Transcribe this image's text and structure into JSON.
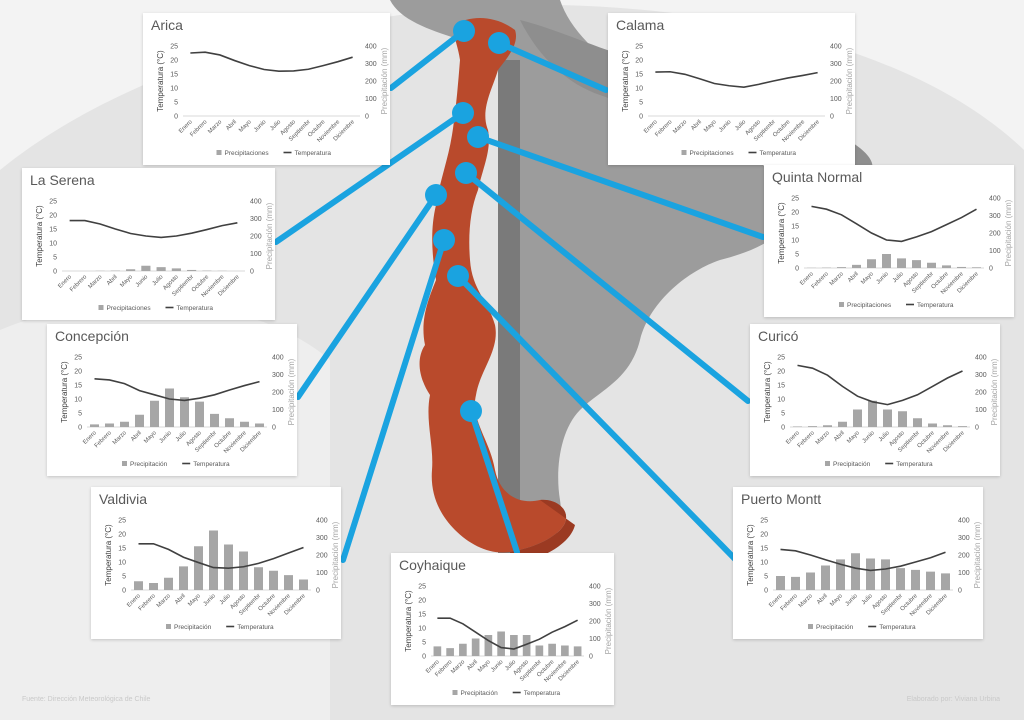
{
  "footer": {
    "source": "Fuente: Dirección Meteorológica de Chile",
    "credit": "Elaborado por: Viviana Urbina"
  },
  "colors": {
    "background": "#f3f3f3",
    "land_grey": "#9a9a9a",
    "chile_red": "#b94a2c",
    "connector_blue": "#1aa3e0",
    "bars": "#a6a6a6",
    "line": "#404040"
  },
  "chart_data": [
    {
      "type": "bar",
      "title": "Arica",
      "categories": [
        "Enero",
        "Febrero",
        "Marzo",
        "Abril",
        "Mayo",
        "Junio",
        "Julio",
        "Agosto",
        "Septiembr",
        "Octubre",
        "Noviembre",
        "Diciembre"
      ],
      "series": [
        {
          "name": "Precipitaciones",
          "kind": "bar",
          "axis": "right",
          "values": [
            0,
            0,
            0,
            0,
            0,
            0,
            0,
            0,
            0,
            0,
            0,
            0
          ]
        },
        {
          "name": "Temperatura",
          "kind": "line",
          "axis": "left",
          "values": [
            22.5,
            22.8,
            21.8,
            19.8,
            18,
            16.6,
            16,
            16.1,
            16.7,
            18,
            19.4,
            21
          ]
        }
      ],
      "ylabel": "Temperatura (°C)",
      "y2label": "Precipitación (mm)",
      "ylim": [
        0,
        25
      ],
      "y2lim": [
        0,
        400
      ],
      "yticks": [
        "0",
        "5",
        "10",
        "15",
        "20",
        "25"
      ],
      "y2ticks": [
        "0",
        "100",
        "200",
        "300",
        "400"
      ],
      "legend": "bottom"
    },
    {
      "type": "bar",
      "title": "Calama",
      "categories": [
        "Enero",
        "Febrero",
        "Marzo",
        "Abril",
        "Mayo",
        "Junio",
        "Julio",
        "Agosto",
        "Septiembr",
        "Octubre",
        "Noviembre",
        "Diciembre"
      ],
      "series": [
        {
          "name": "Precipitaciones",
          "kind": "bar",
          "axis": "right",
          "values": [
            0,
            0,
            0,
            0,
            0,
            0,
            0,
            0,
            0,
            0,
            0,
            0
          ]
        },
        {
          "name": "Temperatura",
          "kind": "line",
          "axis": "left",
          "values": [
            15.7,
            15.8,
            14.9,
            13.3,
            11.6,
            10.8,
            10.3,
            11.3,
            12.5,
            13.6,
            14.5,
            15.5
          ]
        }
      ],
      "ylabel": "Temperatura (°C)",
      "y2label": "Precipitación (mm)",
      "ylim": [
        0,
        25
      ],
      "y2lim": [
        0,
        400
      ],
      "yticks": [
        "0",
        "5",
        "10",
        "15",
        "20",
        "25"
      ],
      "y2ticks": [
        "0",
        "100",
        "200",
        "300",
        "400"
      ],
      "legend": "bottom"
    },
    {
      "type": "bar",
      "title": "La Serena",
      "categories": [
        "Enero",
        "Febrero",
        "Marzo",
        "Abril",
        "Mayo",
        "Junio",
        "Julio",
        "Agosto",
        "Septiembr",
        "Octubre",
        "Noviembre",
        "Diciembre"
      ],
      "series": [
        {
          "name": "Precipitaciones",
          "kind": "bar",
          "axis": "right",
          "values": [
            0,
            0,
            1,
            2,
            10,
            30,
            22,
            15,
            6,
            2,
            1,
            0
          ]
        },
        {
          "name": "Temperatura",
          "kind": "line",
          "axis": "left",
          "values": [
            18,
            18,
            16.8,
            15,
            13.4,
            12.5,
            12,
            12.5,
            13.5,
            14.8,
            16.2,
            17.2
          ]
        }
      ],
      "ylabel": "Temperatura (°C)",
      "y2label": "Precipitación (mm)",
      "ylim": [
        0,
        25
      ],
      "y2lim": [
        0,
        400
      ],
      "yticks": [
        "0",
        "5",
        "10",
        "15",
        "20",
        "25"
      ],
      "y2ticks": [
        "0",
        "100",
        "200",
        "300",
        "400"
      ],
      "legend": "bottom"
    },
    {
      "type": "bar",
      "title": "Quinta Normal",
      "categories": [
        "Enero",
        "Febrero",
        "Marzo",
        "Abril",
        "Mayo",
        "Junio",
        "Julio",
        "Agosto",
        "Septiembr",
        "Octubre",
        "Noviembre",
        "Diciembre"
      ],
      "series": [
        {
          "name": "Precipitaciones",
          "kind": "bar",
          "axis": "right",
          "values": [
            1,
            2,
            5,
            18,
            50,
            80,
            55,
            45,
            30,
            15,
            6,
            4
          ]
        },
        {
          "name": "Temperatura",
          "kind": "line",
          "axis": "left",
          "values": [
            22,
            21,
            19,
            15.8,
            12.5,
            10,
            9.5,
            11.1,
            13,
            15.5,
            18,
            21
          ]
        }
      ],
      "ylabel": "Temperatura (°C)",
      "y2label": "Precipitación (mm)",
      "ylim": [
        0,
        25
      ],
      "y2lim": [
        0,
        400
      ],
      "yticks": [
        "0",
        "5",
        "10",
        "15",
        "20",
        "25"
      ],
      "y2ticks": [
        "0",
        "100",
        "200",
        "300",
        "400"
      ],
      "legend": "bottom"
    },
    {
      "type": "bar",
      "title": "Concepción",
      "categories": [
        "Enero",
        "Febrero",
        "Marzo",
        "Abril",
        "Mayo",
        "Junio",
        "Julio",
        "Agosto",
        "Septiembr",
        "Octubre",
        "Noviembre",
        "Diciembre"
      ],
      "series": [
        {
          "name": "Precipitación",
          "kind": "bar",
          "axis": "right",
          "values": [
            15,
            20,
            30,
            70,
            150,
            220,
            170,
            145,
            75,
            50,
            30,
            20
          ]
        },
        {
          "name": "Temperatura",
          "kind": "line",
          "axis": "left",
          "values": [
            17.2,
            16.8,
            15.5,
            13,
            11.5,
            10,
            9.5,
            10.3,
            11.5,
            13.2,
            14.8,
            16.2
          ]
        }
      ],
      "ylabel": "Temperatura (°C)",
      "y2label": "Precipitación (mm)",
      "ylim": [
        0,
        25
      ],
      "y2lim": [
        0,
        400
      ],
      "yticks": [
        "0",
        "5",
        "10",
        "15",
        "20",
        "25"
      ],
      "y2ticks": [
        "0",
        "100",
        "200",
        "300",
        "400"
      ],
      "legend": "bottom"
    },
    {
      "type": "bar",
      "title": "Curicó",
      "categories": [
        "Enero",
        "Febrero",
        "Marzo",
        "Abril",
        "Mayo",
        "Junio",
        "Julio",
        "Agosto",
        "Septiembr",
        "Octubre",
        "Noviembre",
        "Diciembre"
      ],
      "series": [
        {
          "name": "Precipitación",
          "kind": "bar",
          "axis": "right",
          "values": [
            3,
            5,
            10,
            30,
            100,
            150,
            100,
            90,
            50,
            20,
            10,
            5
          ]
        },
        {
          "name": "Temperatura",
          "kind": "line",
          "axis": "left",
          "values": [
            22,
            21,
            18.5,
            14.5,
            11,
            9,
            8,
            9.5,
            11.5,
            14.5,
            17.5,
            20
          ]
        }
      ],
      "ylabel": "Temperatura (°C)",
      "y2label": "Precipitación (mm)",
      "ylim": [
        0,
        25
      ],
      "y2lim": [
        0,
        400
      ],
      "yticks": [
        "0",
        "5",
        "10",
        "15",
        "20",
        "25"
      ],
      "y2ticks": [
        "0",
        "100",
        "200",
        "300",
        "400"
      ],
      "legend": "bottom"
    },
    {
      "type": "bar",
      "title": "Valdivia",
      "categories": [
        "Enero",
        "Febrero",
        "Marzo",
        "Abril",
        "Mayo",
        "Junio",
        "Julio",
        "Agosto",
        "Septiembr",
        "Octubre",
        "Noviembre",
        "Diciembre"
      ],
      "series": [
        {
          "name": "Precipitación",
          "kind": "bar",
          "axis": "right",
          "values": [
            50,
            40,
            70,
            135,
            250,
            340,
            260,
            220,
            130,
            110,
            85,
            60
          ]
        },
        {
          "name": "Temperatura",
          "kind": "line",
          "axis": "left",
          "values": [
            16.5,
            16.5,
            14.5,
            11.7,
            9.8,
            8,
            7.8,
            8.3,
            9.5,
            11.2,
            13.2,
            15.2
          ]
        }
      ],
      "ylabel": "Temperatura (°C)",
      "y2label": "Precipitación (mm)",
      "ylim": [
        0,
        25
      ],
      "y2lim": [
        0,
        400
      ],
      "yticks": [
        "0",
        "5",
        "10",
        "15",
        "20",
        "25"
      ],
      "y2ticks": [
        "0",
        "100",
        "200",
        "300",
        "400"
      ],
      "legend": "bottom"
    },
    {
      "type": "bar",
      "title": "Puerto Montt",
      "categories": [
        "Enero",
        "Febrero",
        "Marzo",
        "Abril",
        "Mayo",
        "Junio",
        "Julio",
        "Agosto",
        "Septiembr",
        "Octubre",
        "Noviembre",
        "Diciembre"
      ],
      "series": [
        {
          "name": "Precipitación",
          "kind": "bar",
          "axis": "right",
          "values": [
            80,
            75,
            100,
            140,
            175,
            210,
            180,
            175,
            125,
            115,
            105,
            95
          ]
        },
        {
          "name": "Temperatura",
          "kind": "line",
          "axis": "left",
          "values": [
            14.5,
            14,
            12.5,
            10.8,
            9.2,
            7.8,
            7,
            7.5,
            8.5,
            10,
            11.5,
            13.5
          ]
        }
      ],
      "ylabel": "Temperatura (°C)",
      "y2label": "Precipitación (mm)",
      "ylim": [
        0,
        25
      ],
      "y2lim": [
        0,
        400
      ],
      "yticks": [
        "0",
        "5",
        "10",
        "15",
        "20",
        "25"
      ],
      "y2ticks": [
        "0",
        "100",
        "200",
        "300",
        "400"
      ],
      "legend": "bottom"
    },
    {
      "type": "bar",
      "title": "Coyhaique",
      "categories": [
        "Enero",
        "Febrero",
        "Marzo",
        "Abril",
        "Mayo",
        "Junio",
        "Julio",
        "Agosto",
        "Septiembr",
        "Octubre",
        "Noviembre",
        "Diciembre"
      ],
      "series": [
        {
          "name": "Precipitación",
          "kind": "bar",
          "axis": "right",
          "values": [
            55,
            45,
            70,
            100,
            120,
            140,
            120,
            120,
            60,
            70,
            60,
            55
          ]
        },
        {
          "name": "Temperatura",
          "kind": "line",
          "axis": "left",
          "values": [
            13.5,
            13.5,
            11.5,
            8.5,
            5.5,
            3,
            2.5,
            4.2,
            6,
            8.5,
            10.5,
            12.8
          ]
        }
      ],
      "ylabel": "Temperatura (°C)",
      "y2label": "Precipitación (mm)",
      "ylim": [
        0,
        25
      ],
      "y2lim": [
        0,
        400
      ],
      "yticks": [
        "0",
        "5",
        "10",
        "15",
        "20",
        "25"
      ],
      "y2ticks": [
        "0",
        "100",
        "200",
        "300",
        "400"
      ],
      "legend": "bottom"
    }
  ]
}
